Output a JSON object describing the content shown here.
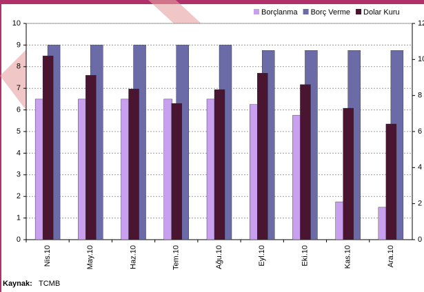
{
  "chart_data": {
    "type": "bar",
    "categories": [
      "Nis.10",
      "May.10",
      "Haz.10",
      "Tem.10",
      "Ağu.10",
      "Eyl.10",
      "Eki.10",
      "Kas.10",
      "Ara.10"
    ],
    "series": [
      {
        "name": "Borçlanma",
        "color": "#c9a0f0",
        "values": [
          6.5,
          6.5,
          6.5,
          6.5,
          6.5,
          6.25,
          5.75,
          1.75,
          1.5
        ]
      },
      {
        "name": "Borç Verme",
        "color": "#6b6ba8",
        "values": [
          9,
          9,
          9,
          9,
          9,
          8.75,
          8.75,
          8.75,
          8.75
        ]
      },
      {
        "name": "Dolar Kuru",
        "color": "#4a1530",
        "values": [
          8.5,
          7.6,
          6.97,
          6.3,
          6.94,
          7.7,
          7.17,
          6.08,
          5.35
        ]
      }
    ],
    "ylim": [
      0,
      10
    ],
    "yticks": [
      0,
      1,
      2,
      3,
      4,
      5,
      6,
      7,
      8,
      9,
      10
    ],
    "y2lim": [
      0,
      12
    ],
    "y2ticks": [
      0,
      2,
      4,
      6,
      8,
      10,
      12
    ],
    "legend": "top-right",
    "source": {
      "label": "Kaynak:",
      "value": "TCMB"
    }
  }
}
